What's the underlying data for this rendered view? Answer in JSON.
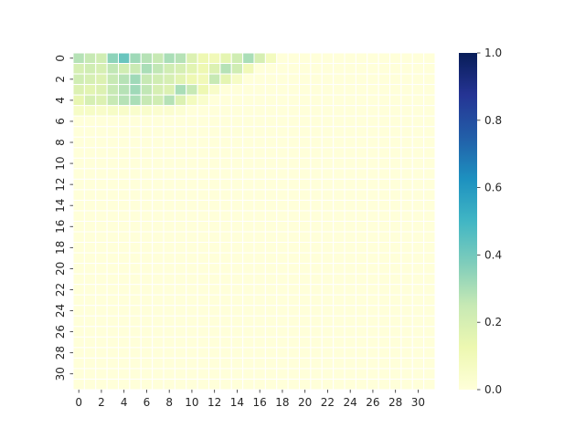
{
  "chart_data": {
    "type": "heatmap",
    "title": "",
    "xlabel": "",
    "ylabel": "",
    "rows": 32,
    "cols": 32,
    "x_ticks": [
      0,
      2,
      4,
      6,
      8,
      10,
      12,
      14,
      16,
      18,
      20,
      22,
      24,
      26,
      28,
      30
    ],
    "y_ticks": [
      0,
      2,
      4,
      6,
      8,
      10,
      12,
      14,
      16,
      18,
      20,
      22,
      24,
      26,
      28,
      30
    ],
    "y_tick_rotation": "vertical",
    "colormap": "YlGnBu",
    "vmin": 0.0,
    "vmax": 1.0,
    "colorbar_ticks": [
      0.0,
      0.2,
      0.4,
      0.6,
      0.8,
      1.0
    ],
    "colorbar_tick_labels": [
      "0.0",
      "0.2",
      "0.4",
      "0.6",
      "0.8",
      "1.0"
    ],
    "cell_border_color": "#ffffff",
    "nonzero_rows": [
      [
        0.28,
        0.25,
        0.22,
        0.35,
        0.42,
        0.32,
        0.28,
        0.25,
        0.3,
        0.28,
        0.18,
        0.12,
        0.1,
        0.15,
        0.22,
        0.3,
        0.2,
        0.08
      ],
      [
        0.2,
        0.22,
        0.2,
        0.26,
        0.22,
        0.24,
        0.3,
        0.26,
        0.22,
        0.2,
        0.16,
        0.12,
        0.18,
        0.28,
        0.22,
        0.1
      ],
      [
        0.22,
        0.2,
        0.18,
        0.25,
        0.28,
        0.32,
        0.25,
        0.22,
        0.2,
        0.16,
        0.12,
        0.1,
        0.25,
        0.15,
        0.06
      ],
      [
        0.18,
        0.16,
        0.18,
        0.25,
        0.28,
        0.32,
        0.26,
        0.2,
        0.18,
        0.3,
        0.25,
        0.12,
        0.05
      ],
      [
        0.14,
        0.2,
        0.18,
        0.25,
        0.28,
        0.3,
        0.25,
        0.22,
        0.28,
        0.18,
        0.08,
        0.04
      ],
      [
        0.06,
        0.06,
        0.05,
        0.06,
        0.05,
        0.04,
        0.04,
        0.03,
        0.03,
        0.02
      ]
    ]
  }
}
